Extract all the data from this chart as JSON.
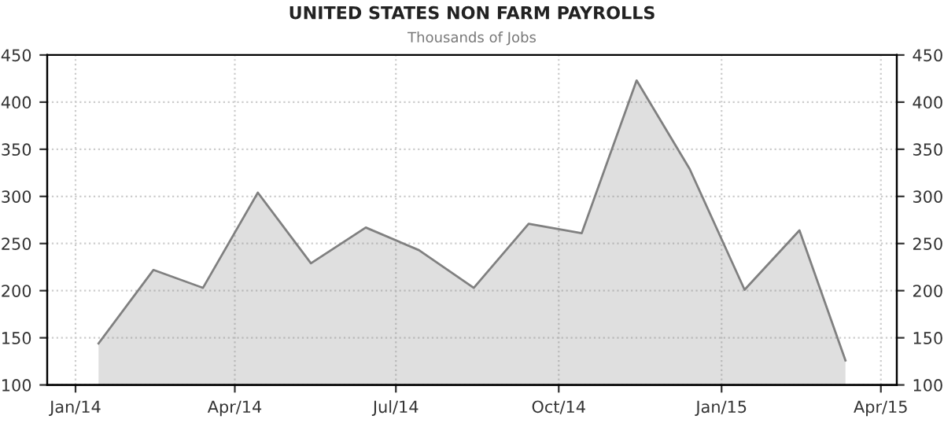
{
  "chart_data": {
    "type": "area",
    "title": "UNITED STATES NON FARM PAYROLLS",
    "subtitle": "Thousands of Jobs",
    "x": [
      "2014-01-14",
      "2014-02-14",
      "2014-03-14",
      "2014-04-14",
      "2014-05-14",
      "2014-06-14",
      "2014-07-14",
      "2014-08-14",
      "2014-09-14",
      "2014-10-14",
      "2014-11-14",
      "2014-12-14",
      "2015-01-14",
      "2015-02-14",
      "2015-03-12"
    ],
    "series": [
      {
        "color": "#808080",
        "values": [
          144,
          222,
          203,
          304,
          229,
          267,
          243,
          203,
          271,
          261,
          423,
          329,
          201,
          264,
          126
        ]
      }
    ],
    "xlim": [
      "2013-12-16",
      "2015-04-10"
    ],
    "xticks": [
      {
        "value": "2014-01-01",
        "label": "Jan/14"
      },
      {
        "value": "2014-04-01",
        "label": "Apr/14"
      },
      {
        "value": "2014-07-01",
        "label": "Jul/14"
      },
      {
        "value": "2014-10-01",
        "label": "Oct/14"
      },
      {
        "value": "2015-01-01",
        "label": "Jan/15"
      },
      {
        "value": "2015-04-01",
        "label": "Apr/15"
      }
    ],
    "ylim": [
      100,
      450
    ],
    "yticks": [
      100,
      150,
      200,
      250,
      300,
      350,
      400,
      450
    ],
    "y2lim": [
      100,
      450
    ],
    "y2ticks": [
      100,
      150,
      200,
      250,
      300,
      350,
      400,
      450
    ],
    "grid": true,
    "line_style": "solid"
  }
}
